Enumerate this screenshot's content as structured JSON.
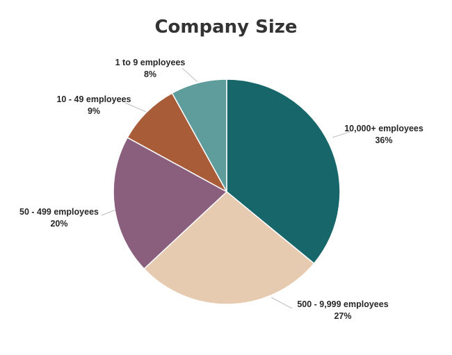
{
  "chart_data": {
    "type": "pie",
    "title": "Company Size",
    "categories": [
      "10,000+ employees",
      "500 - 9,999 employees",
      "50 - 499 employees",
      "10 - 49 employees",
      "1 to 9 employees"
    ],
    "values": [
      36,
      27,
      20,
      9,
      8
    ],
    "value_labels": [
      "36%",
      "27%",
      "20%",
      "9%",
      "8%"
    ],
    "colors": [
      "#17676a",
      "#e6cbb1",
      "#8a5f7e",
      "#a85c38",
      "#5f9d9d"
    ]
  }
}
